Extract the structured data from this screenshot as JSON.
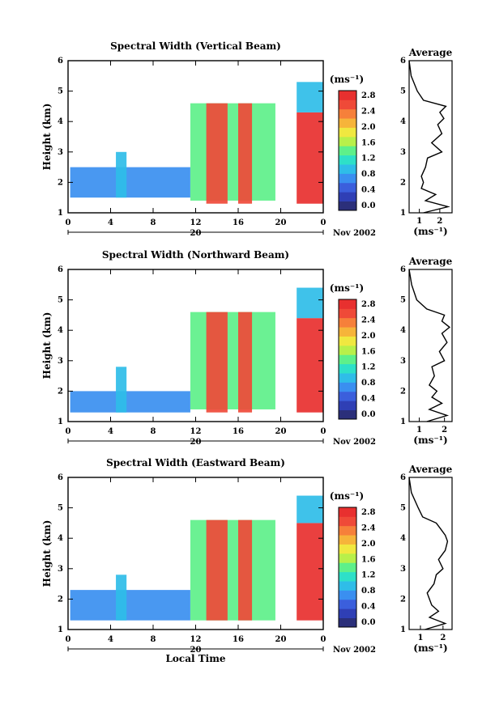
{
  "chart_data": [
    {
      "type": "heatmap",
      "title": "Spectral Width (Vertical Beam)",
      "xlabel": "",
      "date_label": "20",
      "date_suffix": "Nov 2002",
      "ylabel": "Height (km)",
      "xlim": [
        0,
        24
      ],
      "ylim": [
        1,
        6
      ],
      "x_ticks": [
        "0",
        "4",
        "8",
        "12",
        "16",
        "20",
        "0"
      ],
      "y_ticks": [
        "1",
        "2",
        "3",
        "4",
        "5",
        "6"
      ],
      "colorbar": {
        "label": "(ms⁻¹)",
        "ticks": [
          "0.0",
          "0.4",
          "0.8",
          "1.2",
          "1.6",
          "2.0",
          "2.4",
          "2.8"
        ],
        "range": [
          0,
          3.0
        ]
      },
      "average": {
        "title": "Average",
        "xlabel": "(ms⁻¹)",
        "x_ticks": [
          "1",
          "2"
        ],
        "xlim": [
          0.5,
          2.6
        ],
        "profile": [
          [
            1.0,
            1.2
          ],
          [
            1.2,
            2.4
          ],
          [
            1.4,
            1.3
          ],
          [
            1.6,
            1.8
          ],
          [
            1.8,
            1.1
          ],
          [
            2.0,
            1.2
          ],
          [
            2.2,
            1.1
          ],
          [
            2.5,
            1.3
          ],
          [
            2.8,
            1.4
          ],
          [
            3.0,
            2.1
          ],
          [
            3.3,
            1.6
          ],
          [
            3.6,
            2.1
          ],
          [
            3.9,
            1.9
          ],
          [
            4.1,
            2.2
          ],
          [
            4.3,
            2.0
          ],
          [
            4.5,
            2.3
          ],
          [
            4.7,
            1.2
          ],
          [
            5.0,
            0.9
          ],
          [
            5.5,
            0.6
          ],
          [
            6.0,
            0.5
          ]
        ]
      },
      "regions": [
        {
          "hours": [
            0.2,
            11.5
          ],
          "heights": [
            1.5,
            2.5
          ],
          "value": 0.7
        },
        {
          "hours": [
            4.5,
            5.5
          ],
          "heights": [
            1.5,
            3.0
          ],
          "value": 1.0
        },
        {
          "hours": [
            11.5,
            19.5
          ],
          "heights": [
            1.4,
            4.6
          ],
          "value": 1.5
        },
        {
          "hours": [
            13.0,
            15.0
          ],
          "heights": [
            1.3,
            4.6
          ],
          "value": 2.7
        },
        {
          "hours": [
            16.0,
            17.3
          ],
          "heights": [
            1.3,
            4.6
          ],
          "value": 2.7
        },
        {
          "hours": [
            21.5,
            24.0
          ],
          "heights": [
            1.3,
            4.3
          ],
          "value": 2.8
        },
        {
          "hours": [
            21.5,
            24.0
          ],
          "heights": [
            4.3,
            5.3
          ],
          "value": 1.1
        }
      ]
    },
    {
      "type": "heatmap",
      "title": "Spectral Width (Northward Beam)",
      "xlabel": "",
      "date_label": "20",
      "date_suffix": "Nov 2002",
      "ylabel": "Height (km)",
      "xlim": [
        0,
        24
      ],
      "ylim": [
        1,
        6
      ],
      "x_ticks": [
        "0",
        "4",
        "8",
        "12",
        "16",
        "20",
        "0"
      ],
      "y_ticks": [
        "1",
        "2",
        "3",
        "4",
        "5",
        "6"
      ],
      "colorbar": {
        "label": "(ms⁻¹)",
        "ticks": [
          "0.0",
          "0.4",
          "0.8",
          "1.2",
          "1.6",
          "2.0",
          "2.4",
          "2.8"
        ],
        "range": [
          0,
          3.0
        ]
      },
      "average": {
        "title": "Average",
        "xlabel": "(ms⁻¹)",
        "x_ticks": [
          "1",
          "2"
        ],
        "xlim": [
          0.6,
          2.3
        ],
        "profile": [
          [
            1.0,
            1.3
          ],
          [
            1.2,
            2.1
          ],
          [
            1.4,
            1.4
          ],
          [
            1.6,
            1.9
          ],
          [
            1.8,
            1.5
          ],
          [
            2.0,
            1.7
          ],
          [
            2.2,
            1.4
          ],
          [
            2.5,
            1.6
          ],
          [
            2.8,
            1.5
          ],
          [
            3.0,
            2.0
          ],
          [
            3.3,
            1.8
          ],
          [
            3.6,
            2.1
          ],
          [
            3.9,
            1.9
          ],
          [
            4.1,
            2.2
          ],
          [
            4.3,
            1.9
          ],
          [
            4.5,
            2.0
          ],
          [
            4.7,
            1.3
          ],
          [
            5.0,
            0.9
          ],
          [
            5.5,
            0.7
          ],
          [
            6.0,
            0.6
          ]
        ]
      },
      "regions": [
        {
          "hours": [
            0.2,
            11.5
          ],
          "heights": [
            1.3,
            2.0
          ],
          "value": 0.7
        },
        {
          "hours": [
            4.5,
            5.5
          ],
          "heights": [
            1.3,
            2.8
          ],
          "value": 1.0
        },
        {
          "hours": [
            11.5,
            19.5
          ],
          "heights": [
            1.4,
            4.6
          ],
          "value": 1.5
        },
        {
          "hours": [
            13.0,
            15.0
          ],
          "heights": [
            1.3,
            4.6
          ],
          "value": 2.7
        },
        {
          "hours": [
            16.0,
            17.3
          ],
          "heights": [
            1.3,
            4.6
          ],
          "value": 2.7
        },
        {
          "hours": [
            21.5,
            24.0
          ],
          "heights": [
            1.3,
            4.4
          ],
          "value": 2.8
        },
        {
          "hours": [
            21.5,
            24.0
          ],
          "heights": [
            4.4,
            5.4
          ],
          "value": 1.1
        }
      ]
    },
    {
      "type": "heatmap",
      "title": "Spectral Width (Eastward Beam)",
      "xlabel": "Local Time",
      "date_label": "20",
      "date_suffix": "Nov 2002",
      "ylabel": "Height (km)",
      "xlim": [
        0,
        24
      ],
      "ylim": [
        1,
        6
      ],
      "x_ticks": [
        "0",
        "4",
        "8",
        "12",
        "16",
        "20",
        "0"
      ],
      "y_ticks": [
        "1",
        "2",
        "3",
        "4",
        "5",
        "6"
      ],
      "colorbar": {
        "label": "(ms⁻¹)",
        "ticks": [
          "0.0",
          "0.4",
          "0.8",
          "1.2",
          "1.6",
          "2.0",
          "2.4",
          "2.8"
        ],
        "range": [
          0,
          3.0
        ]
      },
      "average": {
        "title": "Average",
        "xlabel": "(ms⁻¹)",
        "x_ticks": [
          "1",
          "2"
        ],
        "xlim": [
          0.5,
          2.4
        ],
        "profile": [
          [
            1.0,
            1.2
          ],
          [
            1.2,
            2.1
          ],
          [
            1.4,
            1.4
          ],
          [
            1.6,
            1.8
          ],
          [
            1.8,
            1.5
          ],
          [
            2.0,
            1.4
          ],
          [
            2.2,
            1.3
          ],
          [
            2.5,
            1.6
          ],
          [
            2.8,
            1.7
          ],
          [
            3.0,
            2.0
          ],
          [
            3.3,
            1.8
          ],
          [
            3.6,
            2.1
          ],
          [
            3.9,
            2.2
          ],
          [
            4.1,
            2.1
          ],
          [
            4.3,
            1.9
          ],
          [
            4.5,
            1.7
          ],
          [
            4.7,
            1.1
          ],
          [
            5.0,
            0.9
          ],
          [
            5.5,
            0.6
          ],
          [
            6.0,
            0.5
          ]
        ]
      },
      "regions": [
        {
          "hours": [
            0.2,
            11.5
          ],
          "heights": [
            1.3,
            2.3
          ],
          "value": 0.7
        },
        {
          "hours": [
            4.5,
            5.5
          ],
          "heights": [
            1.3,
            2.8
          ],
          "value": 1.0
        },
        {
          "hours": [
            11.5,
            19.5
          ],
          "heights": [
            1.3,
            4.6
          ],
          "value": 1.5
        },
        {
          "hours": [
            13.0,
            15.0
          ],
          "heights": [
            1.3,
            4.6
          ],
          "value": 2.7
        },
        {
          "hours": [
            16.0,
            17.3
          ],
          "heights": [
            1.3,
            4.6
          ],
          "value": 2.7
        },
        {
          "hours": [
            21.5,
            24.0
          ],
          "heights": [
            1.3,
            4.5
          ],
          "value": 2.8
        },
        {
          "hours": [
            21.5,
            24.0
          ],
          "heights": [
            4.5,
            5.4
          ],
          "value": 1.1
        }
      ]
    }
  ],
  "colors": {
    "scale": [
      "#2b2f7a",
      "#2f3fb5",
      "#3b5fdc",
      "#3a8ff0",
      "#2fbde8",
      "#2ee0c8",
      "#5ef08a",
      "#b8f04a",
      "#f0e840",
      "#f6b43a",
      "#f6803a",
      "#ef4a38",
      "#e8302f"
    ],
    "axis": "#000000"
  }
}
